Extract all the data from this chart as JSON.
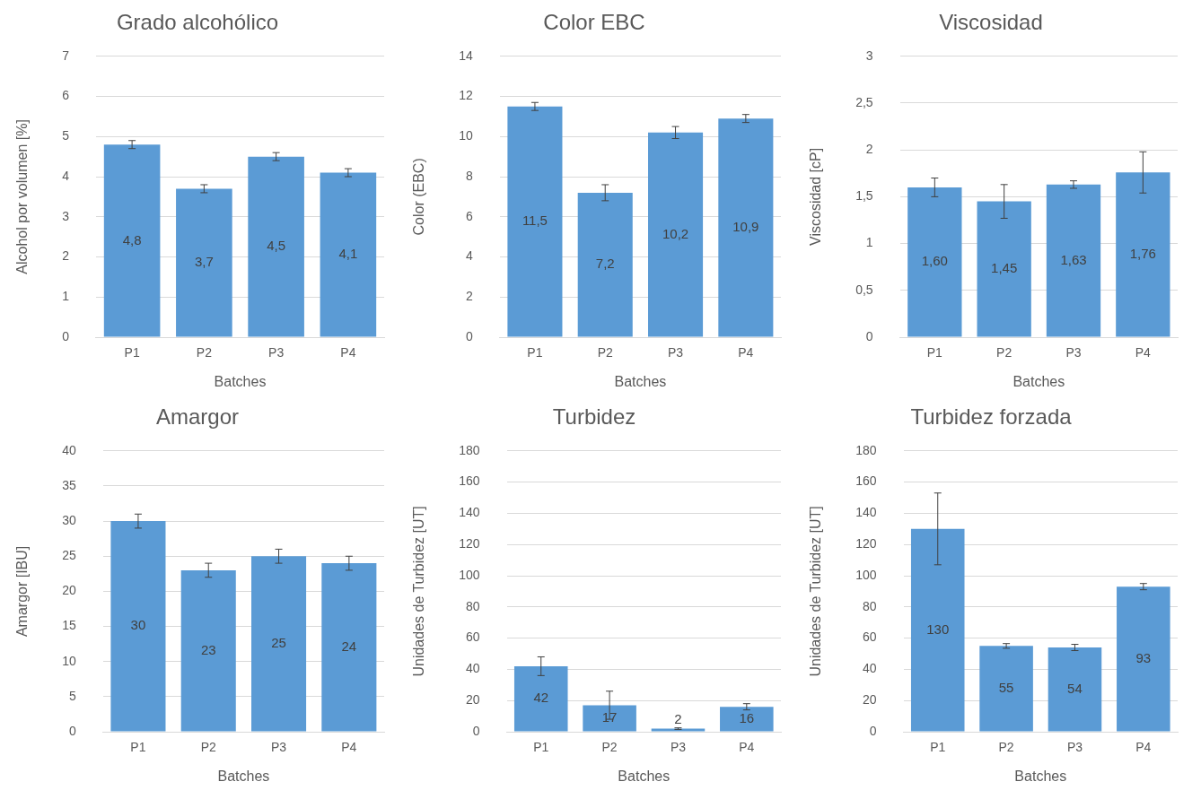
{
  "chart_data": [
    {
      "type": "bar",
      "title": "Grado alcohólico",
      "xlabel": "Batches",
      "ylabel": "Alcohol por volumen [%]",
      "categories": [
        "P1",
        "P2",
        "P3",
        "P4"
      ],
      "values": [
        4.8,
        3.7,
        4.5,
        4.1
      ],
      "errors": [
        0.1,
        0.1,
        0.1,
        0.1
      ],
      "value_labels": [
        "4,8",
        "3,7",
        "4,5",
        "4,1"
      ],
      "color": "#5b9bd5",
      "ylim": [
        0,
        7
      ],
      "yticks": [
        0,
        1,
        2,
        3,
        4,
        5,
        6,
        7
      ],
      "grid": "y",
      "legend": false
    },
    {
      "type": "bar",
      "title": "Color EBC",
      "xlabel": "Batches",
      "ylabel": "Color (EBC)",
      "categories": [
        "P1",
        "P2",
        "P3",
        "P4"
      ],
      "values": [
        11.5,
        7.2,
        10.2,
        10.9
      ],
      "errors": [
        0.2,
        0.4,
        0.3,
        0.2
      ],
      "value_labels": [
        "11,5",
        "7,2",
        "10,2",
        "10,9"
      ],
      "color": "#5b9bd5",
      "ylim": [
        0,
        14
      ],
      "yticks": [
        0,
        2,
        4,
        6,
        8,
        10,
        12,
        14
      ],
      "grid": "y",
      "legend": false
    },
    {
      "type": "bar",
      "title": "Viscosidad",
      "xlabel": "Batches",
      "ylabel": "Viscosidad [cP]",
      "categories": [
        "P1",
        "P2",
        "P3",
        "P4"
      ],
      "values": [
        1.6,
        1.45,
        1.63,
        1.76
      ],
      "errors": [
        0.1,
        0.18,
        0.04,
        0.22
      ],
      "value_labels": [
        "1,60",
        "1,45",
        "1,63",
        "1,76"
      ],
      "color": "#5b9bd5",
      "ylim": [
        0,
        3
      ],
      "yticks": [
        0,
        {
          "value": 0.5,
          "label": "0,5"
        },
        1,
        {
          "value": 1.5,
          "label": "1,5"
        },
        2,
        {
          "value": 2.5,
          "label": "2,5"
        },
        3
      ],
      "grid": "y",
      "legend": false
    },
    {
      "type": "bar",
      "title": "Amargor",
      "xlabel": "Batches",
      "ylabel": "Amargor [IBU]",
      "categories": [
        "P1",
        "P2",
        "P3",
        "P4"
      ],
      "values": [
        30,
        23,
        25,
        24
      ],
      "errors": [
        1,
        1,
        1,
        1
      ],
      "value_labels": [
        "30",
        "23",
        "25",
        "24"
      ],
      "color": "#5b9bd5",
      "ylim": [
        0,
        40
      ],
      "yticks": [
        0,
        5,
        10,
        15,
        20,
        25,
        30,
        35,
        40
      ],
      "grid": "y",
      "legend": false
    },
    {
      "type": "bar",
      "title": "Turbidez",
      "xlabel": "Batches",
      "ylabel": "Unidades de Turbidez [UT]",
      "categories": [
        "P1",
        "P2",
        "P3",
        "P4"
      ],
      "values": [
        42,
        17,
        2,
        16
      ],
      "errors": [
        6,
        9,
        0.5,
        2
      ],
      "value_labels": [
        "42",
        "17",
        "2",
        "16"
      ],
      "color": "#5b9bd5",
      "ylim": [
        0,
        180
      ],
      "yticks": [
        0,
        20,
        40,
        60,
        80,
        100,
        120,
        140,
        160,
        180
      ],
      "grid": "y",
      "legend": false
    },
    {
      "type": "bar",
      "title": "Turbidez forzada",
      "xlabel": "Batches",
      "ylabel": "Unidades de Turbidez [UT]",
      "categories": [
        "P1",
        "P2",
        "P3",
        "P4"
      ],
      "values": [
        130,
        55,
        54,
        93
      ],
      "errors": [
        23,
        1.5,
        2,
        2
      ],
      "value_labels": [
        "130",
        "55",
        "54",
        "93"
      ],
      "color": "#5b9bd5",
      "ylim": [
        0,
        180
      ],
      "yticks": [
        0,
        20,
        40,
        60,
        80,
        100,
        120,
        140,
        160,
        180
      ],
      "grid": "y",
      "legend": false
    }
  ]
}
